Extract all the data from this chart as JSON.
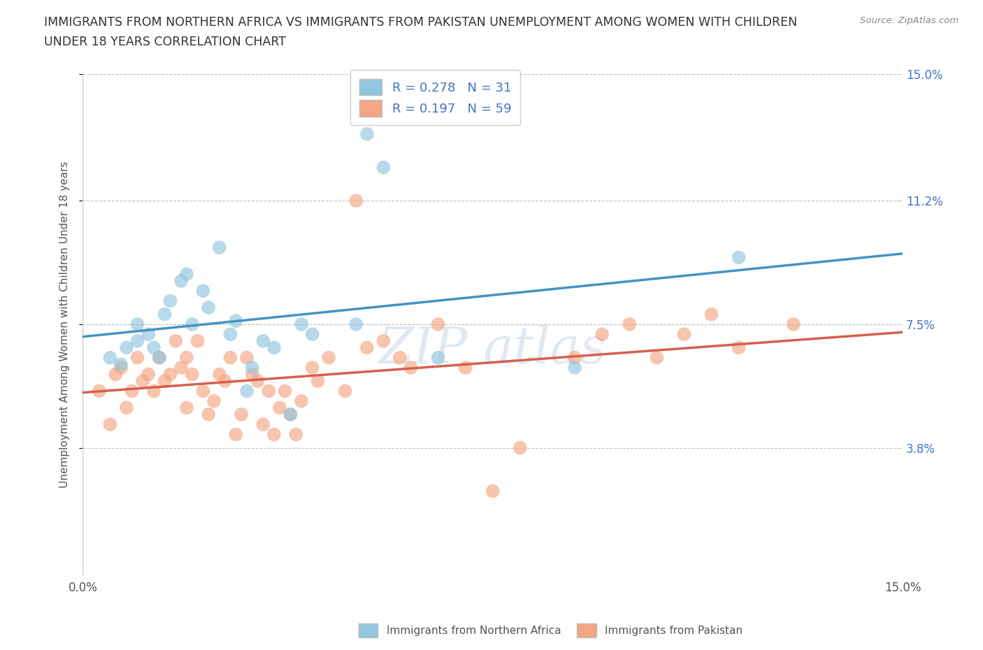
{
  "title_line1": "IMMIGRANTS FROM NORTHERN AFRICA VS IMMIGRANTS FROM PAKISTAN UNEMPLOYMENT AMONG WOMEN WITH CHILDREN",
  "title_line2": "UNDER 18 YEARS CORRELATION CHART",
  "source_text": "Source: ZipAtlas.com",
  "ylabel": "Unemployment Among Women with Children Under 18 years",
  "xlim": [
    0.0,
    0.15
  ],
  "ylim": [
    0.0,
    0.15
  ],
  "ytick_labels": [
    "3.8%",
    "7.5%",
    "11.2%",
    "15.0%"
  ],
  "ytick_values": [
    0.038,
    0.075,
    0.112,
    0.15
  ],
  "blue_R": 0.278,
  "blue_N": 31,
  "pink_R": 0.197,
  "pink_N": 59,
  "blue_color": "#92c5de",
  "pink_color": "#f4a582",
  "blue_line_color": "#4393c3",
  "pink_line_color": "#d6604d",
  "legend_label_blue": "Immigrants from Northern Africa",
  "legend_label_pink": "Immigrants from Pakistan",
  "watermark": "ZIP atlas",
  "blue_scatter_x": [
    0.005,
    0.007,
    0.008,
    0.01,
    0.01,
    0.012,
    0.013,
    0.014,
    0.015,
    0.016,
    0.018,
    0.019,
    0.02,
    0.022,
    0.023,
    0.025,
    0.027,
    0.028,
    0.03,
    0.031,
    0.033,
    0.035,
    0.038,
    0.04,
    0.042,
    0.05,
    0.052,
    0.055,
    0.065,
    0.09,
    0.12
  ],
  "blue_scatter_y": [
    0.065,
    0.063,
    0.068,
    0.07,
    0.075,
    0.072,
    0.068,
    0.065,
    0.078,
    0.082,
    0.088,
    0.09,
    0.075,
    0.085,
    0.08,
    0.098,
    0.072,
    0.076,
    0.055,
    0.062,
    0.07,
    0.068,
    0.048,
    0.075,
    0.072,
    0.075,
    0.132,
    0.122,
    0.065,
    0.062,
    0.095
  ],
  "pink_scatter_x": [
    0.003,
    0.005,
    0.006,
    0.007,
    0.008,
    0.009,
    0.01,
    0.011,
    0.012,
    0.013,
    0.014,
    0.015,
    0.016,
    0.017,
    0.018,
    0.019,
    0.019,
    0.02,
    0.021,
    0.022,
    0.023,
    0.024,
    0.025,
    0.026,
    0.027,
    0.028,
    0.029,
    0.03,
    0.031,
    0.032,
    0.033,
    0.034,
    0.035,
    0.036,
    0.037,
    0.038,
    0.039,
    0.04,
    0.042,
    0.043,
    0.045,
    0.048,
    0.05,
    0.052,
    0.055,
    0.058,
    0.06,
    0.065,
    0.07,
    0.075,
    0.08,
    0.09,
    0.095,
    0.1,
    0.105,
    0.11,
    0.115,
    0.12,
    0.13
  ],
  "pink_scatter_y": [
    0.055,
    0.045,
    0.06,
    0.062,
    0.05,
    0.055,
    0.065,
    0.058,
    0.06,
    0.055,
    0.065,
    0.058,
    0.06,
    0.07,
    0.062,
    0.065,
    0.05,
    0.06,
    0.07,
    0.055,
    0.048,
    0.052,
    0.06,
    0.058,
    0.065,
    0.042,
    0.048,
    0.065,
    0.06,
    0.058,
    0.045,
    0.055,
    0.042,
    0.05,
    0.055,
    0.048,
    0.042,
    0.052,
    0.062,
    0.058,
    0.065,
    0.055,
    0.112,
    0.068,
    0.07,
    0.065,
    0.062,
    0.075,
    0.062,
    0.025,
    0.038,
    0.065,
    0.072,
    0.075,
    0.065,
    0.072,
    0.078,
    0.068,
    0.075
  ]
}
